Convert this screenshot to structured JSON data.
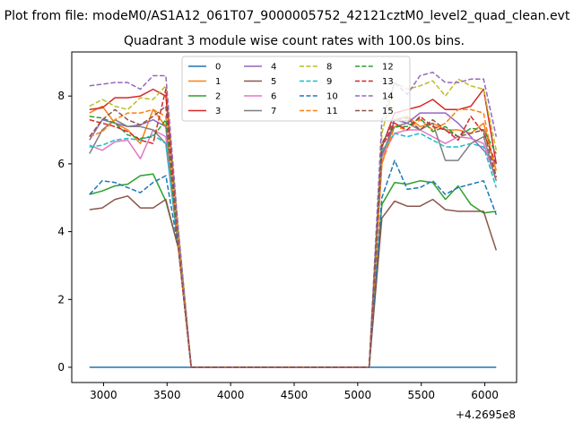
{
  "figure": {
    "suptitle": "Plot from file: modeM0/AS1A12_061T07_9000005752_42121cztM0_level2_quad_clean.evt",
    "title": "Quadrant 3 module wise count rates with 100.0s bins."
  },
  "chart_data": {
    "type": "line",
    "title": "Quadrant 3 module wise count rates with 100.0s bins.",
    "xlabel": "",
    "ylabel": "",
    "x_offset_label": "+4.2695e8",
    "xlim": [
      2750,
      6250
    ],
    "ylim": [
      -0.45,
      9.3
    ],
    "xticks": [
      3000,
      3500,
      4000,
      4500,
      5000,
      5500,
      6000
    ],
    "yticks": [
      0,
      2,
      4,
      6,
      8
    ],
    "grid": false,
    "legend": {
      "position": "top-center",
      "columns": 4
    },
    "x": [
      2890,
      2990,
      3090,
      3190,
      3290,
      3390,
      3490,
      3590,
      3690,
      3790,
      3890,
      3990,
      4090,
      4190,
      4290,
      4390,
      4490,
      4590,
      4690,
      4790,
      4890,
      4990,
      5090,
      5190,
      5290,
      5390,
      5490,
      5590,
      5690,
      5790,
      5890,
      5990,
      6090
    ],
    "series": [
      {
        "name": "0",
        "color": "#1f77b4",
        "dash": "solid",
        "values": [
          0,
          0,
          0,
          0,
          0,
          0,
          0,
          0,
          0,
          0,
          0,
          0,
          0,
          0,
          0,
          0,
          0,
          0,
          0,
          0,
          0,
          0,
          0,
          0,
          0,
          0,
          0,
          0,
          0,
          0,
          0,
          0,
          0
        ]
      },
      {
        "name": "1",
        "color": "#ff7f0e",
        "dash": "solid",
        "values": [
          7.5,
          7.7,
          7.2,
          7.0,
          6.6,
          7.6,
          7.1,
          3.5,
          0,
          0,
          0,
          0,
          0,
          0,
          0,
          0,
          0,
          0,
          0,
          0,
          0,
          0,
          0,
          6.0,
          7.3,
          7.4,
          7.1,
          7.2,
          7.0,
          7.0,
          6.9,
          7.2,
          5.8
        ]
      },
      {
        "name": "2",
        "color": "#2ca02c",
        "dash": "solid",
        "values": [
          5.1,
          5.2,
          5.35,
          5.4,
          5.65,
          5.7,
          4.9,
          3.5,
          0,
          0,
          0,
          0,
          0,
          0,
          0,
          0,
          0,
          0,
          0,
          0,
          0,
          0,
          0,
          4.8,
          5.45,
          5.4,
          5.5,
          5.45,
          4.95,
          5.35,
          4.8,
          4.55,
          4.6
        ]
      },
      {
        "name": "3",
        "color": "#d62728",
        "dash": "solid",
        "values": [
          7.6,
          7.65,
          7.95,
          7.95,
          8.0,
          8.2,
          8.0,
          4.0,
          0,
          0,
          0,
          0,
          0,
          0,
          0,
          0,
          0,
          0,
          0,
          0,
          0,
          0,
          0,
          6.5,
          7.5,
          7.6,
          7.7,
          7.9,
          7.6,
          7.6,
          7.7,
          8.2,
          6.0
        ]
      },
      {
        "name": "4",
        "color": "#9467bd",
        "dash": "solid",
        "values": [
          6.7,
          7.3,
          7.2,
          7.1,
          7.15,
          7.3,
          7.1,
          3.5,
          0,
          0,
          0,
          0,
          0,
          0,
          0,
          0,
          0,
          0,
          0,
          0,
          0,
          0,
          0,
          6.2,
          7.3,
          7.2,
          7.5,
          7.5,
          7.5,
          7.2,
          6.8,
          6.4,
          6.0
        ]
      },
      {
        "name": "5",
        "color": "#8c564b",
        "dash": "solid",
        "values": [
          4.65,
          4.7,
          4.95,
          5.05,
          4.7,
          4.7,
          4.95,
          3.5,
          0,
          0,
          0,
          0,
          0,
          0,
          0,
          0,
          0,
          0,
          0,
          0,
          0,
          0,
          0,
          4.4,
          4.9,
          4.75,
          4.75,
          4.95,
          4.65,
          4.6,
          4.6,
          4.6,
          3.45
        ]
      },
      {
        "name": "6",
        "color": "#e377c2",
        "dash": "solid",
        "values": [
          6.55,
          6.4,
          6.65,
          6.7,
          6.15,
          7.0,
          6.8,
          3.5,
          0,
          0,
          0,
          0,
          0,
          0,
          0,
          0,
          0,
          0,
          0,
          0,
          0,
          0,
          0,
          6.2,
          6.9,
          7.0,
          7.0,
          6.8,
          6.6,
          6.8,
          6.75,
          6.6,
          5.5
        ]
      },
      {
        "name": "7",
        "color": "#7f7f7f",
        "dash": "solid",
        "values": [
          6.3,
          7.0,
          7.3,
          7.1,
          7.1,
          7.0,
          6.6,
          3.5,
          0,
          0,
          0,
          0,
          0,
          0,
          0,
          0,
          0,
          0,
          0,
          0,
          0,
          0,
          0,
          6.3,
          7.1,
          7.2,
          7.0,
          7.2,
          6.1,
          6.1,
          6.6,
          6.8,
          5.5
        ]
      },
      {
        "name": "8",
        "color": "#bcbd22",
        "dash": "dashed",
        "values": [
          7.7,
          7.9,
          7.7,
          7.6,
          7.95,
          7.9,
          8.3,
          4.0,
          0,
          0,
          0,
          0,
          0,
          0,
          0,
          0,
          0,
          0,
          0,
          0,
          0,
          0,
          0,
          6.9,
          8.4,
          8.2,
          8.3,
          8.45,
          8.0,
          8.5,
          8.3,
          8.2,
          6.4
        ]
      },
      {
        "name": "9",
        "color": "#17becf",
        "dash": "dashed",
        "values": [
          6.5,
          6.55,
          6.7,
          6.75,
          6.7,
          6.85,
          6.6,
          3.5,
          0,
          0,
          0,
          0,
          0,
          0,
          0,
          0,
          0,
          0,
          0,
          0,
          0,
          0,
          0,
          6.4,
          6.9,
          6.8,
          6.9,
          6.7,
          6.5,
          6.5,
          6.6,
          6.5,
          5.3
        ]
      },
      {
        "name": "10",
        "color": "#1f77b4",
        "dash": "dashed",
        "values": [
          5.1,
          5.5,
          5.45,
          5.3,
          5.15,
          5.45,
          5.65,
          3.5,
          0,
          0,
          0,
          0,
          0,
          0,
          0,
          0,
          0,
          0,
          0,
          0,
          0,
          0,
          0,
          5.0,
          6.1,
          5.25,
          5.3,
          5.5,
          5.1,
          5.3,
          5.4,
          5.5,
          4.5
        ]
      },
      {
        "name": "11",
        "color": "#ff7f0e",
        "dash": "dashed",
        "values": [
          6.8,
          6.95,
          7.3,
          7.5,
          7.5,
          7.6,
          7.4,
          3.5,
          0,
          0,
          0,
          0,
          0,
          0,
          0,
          0,
          0,
          0,
          0,
          0,
          0,
          0,
          0,
          6.0,
          7.1,
          7.0,
          7.3,
          7.0,
          7.2,
          7.6,
          7.6,
          7.5,
          5.6
        ]
      },
      {
        "name": "12",
        "color": "#2ca02c",
        "dash": "dashed",
        "values": [
          7.4,
          7.35,
          7.2,
          6.85,
          6.75,
          6.8,
          7.3,
          3.5,
          0,
          0,
          0,
          0,
          0,
          0,
          0,
          0,
          0,
          0,
          0,
          0,
          0,
          0,
          0,
          6.6,
          7.1,
          7.1,
          7.35,
          6.95,
          7.1,
          6.8,
          7.05,
          7.0,
          6.3
        ]
      },
      {
        "name": "13",
        "color": "#d62728",
        "dash": "dashed",
        "values": [
          7.3,
          7.2,
          7.1,
          6.95,
          6.7,
          6.6,
          8.2,
          3.5,
          0,
          0,
          0,
          0,
          0,
          0,
          0,
          0,
          0,
          0,
          0,
          0,
          0,
          0,
          0,
          6.5,
          7.2,
          7.0,
          7.4,
          7.1,
          7.0,
          6.7,
          7.4,
          6.9,
          6.0
        ]
      },
      {
        "name": "14",
        "color": "#9467bd",
        "dash": "dashed",
        "values": [
          8.3,
          8.35,
          8.4,
          8.4,
          8.2,
          8.6,
          8.6,
          4.0,
          0,
          0,
          0,
          0,
          0,
          0,
          0,
          0,
          0,
          0,
          0,
          0,
          0,
          0,
          0,
          7.3,
          8.4,
          8.05,
          8.6,
          8.7,
          8.4,
          8.4,
          8.5,
          8.5,
          6.8
        ]
      },
      {
        "name": "15",
        "color": "#8c564b",
        "dash": "dashed",
        "values": [
          6.8,
          7.3,
          7.6,
          7.3,
          7.15,
          7.4,
          7.7,
          3.5,
          0,
          0,
          0,
          0,
          0,
          0,
          0,
          0,
          0,
          0,
          0,
          0,
          0,
          0,
          0,
          6.6,
          7.3,
          7.35,
          7.0,
          7.3,
          7.0,
          6.8,
          6.9,
          7.0,
          5.6
        ]
      }
    ]
  }
}
